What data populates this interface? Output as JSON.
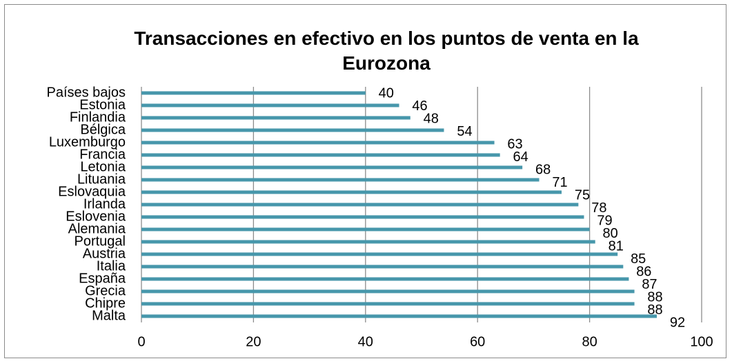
{
  "chart_data": {
    "type": "barh",
    "title": "Transacciones en efectivo en los puntos de venta en la Eurozona",
    "categories": [
      "Países bajos",
      "Estonia",
      "Finlandia",
      "Bélgica",
      "Luxemburgo",
      "Francia",
      "Letonia",
      "Lituania",
      "Eslovaquia",
      "Irlanda",
      "Eslovenia",
      "Alemania",
      "Portugal",
      "Austria",
      "Italia",
      "España",
      "Grecia",
      "Chipre",
      "Malta"
    ],
    "values": [
      40,
      46,
      48,
      54,
      63,
      64,
      68,
      71,
      75,
      78,
      79,
      80,
      81,
      85,
      86,
      87,
      88,
      88,
      92
    ],
    "color": "#4797ab",
    "xlim": [
      0,
      100
    ],
    "xticks": [
      0,
      20,
      40,
      60,
      80,
      100
    ],
    "grid": true
  }
}
